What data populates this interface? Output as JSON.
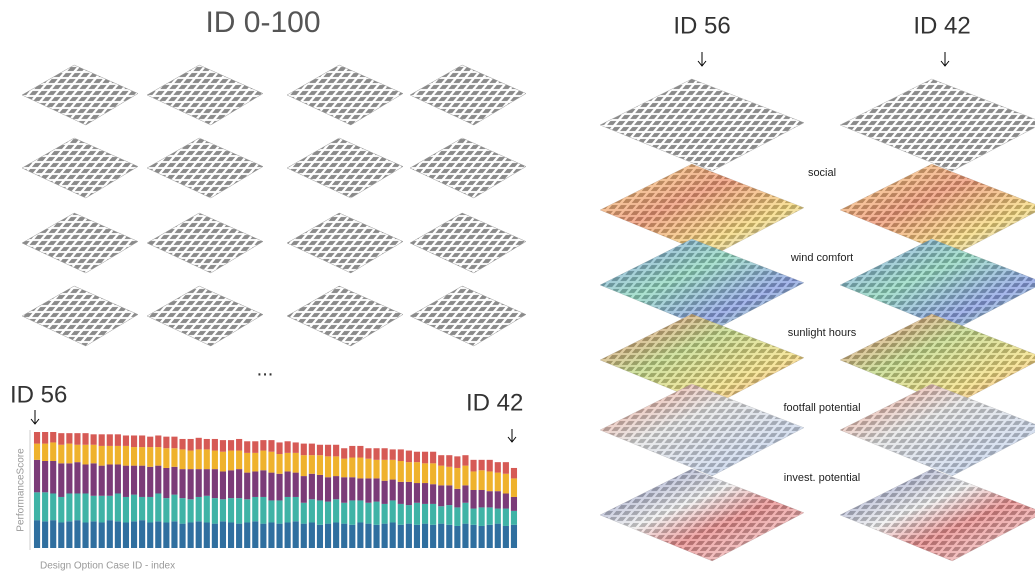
{
  "left_panel": {
    "title": "ID 0-100",
    "ellipsis": "...",
    "marker_left": "ID 56",
    "marker_right": "ID 42"
  },
  "chart_data": {
    "type": "stacked-bar",
    "y_label": "PerformanceScore",
    "x_label": "Design Option Case ID - index",
    "ylim": [
      0,
      100
    ],
    "series": [
      {
        "color": "#2f6f9f",
        "values": [
          24,
          23,
          24,
          22,
          23,
          24,
          22,
          23,
          22,
          24,
          23,
          22,
          23,
          24,
          22,
          23,
          22,
          23,
          21,
          22,
          23,
          22,
          21,
          23,
          22,
          21,
          22,
          23,
          21,
          22,
          21,
          22,
          23,
          21,
          22,
          20,
          21,
          22,
          21,
          20,
          22,
          21,
          20,
          21,
          22,
          20,
          21,
          20,
          21,
          20,
          21,
          20,
          19,
          21,
          20,
          19,
          20,
          21,
          19,
          20
        ]
      },
      {
        "color": "#3fb3a6",
        "values": [
          24,
          25,
          23,
          22,
          24,
          23,
          25,
          22,
          23,
          21,
          24,
          22,
          23,
          20,
          22,
          24,
          21,
          23,
          22,
          20,
          21,
          23,
          22,
          19,
          21,
          22,
          20,
          21,
          23,
          19,
          20,
          22,
          21,
          18,
          20,
          21,
          19,
          20,
          18,
          21,
          19,
          18,
          20,
          17,
          19,
          18,
          16,
          19,
          17,
          18,
          15,
          17,
          16,
          18,
          14,
          16,
          15,
          13,
          15,
          12
        ]
      },
      {
        "color": "#7b3b78",
        "values": [
          28,
          27,
          28,
          29,
          26,
          27,
          25,
          28,
          26,
          27,
          25,
          27,
          25,
          27,
          26,
          24,
          26,
          24,
          25,
          26,
          24,
          23,
          25,
          24,
          24,
          25,
          23,
          22,
          23,
          24,
          23,
          22,
          21,
          23,
          22,
          22,
          21,
          20,
          22,
          20,
          19,
          21,
          20,
          20,
          18,
          19,
          20,
          17,
          18,
          17,
          18,
          17,
          16,
          15,
          16,
          15,
          14,
          15,
          13,
          12
        ]
      },
      {
        "color": "#efb22c",
        "values": [
          14,
          15,
          16,
          16,
          17,
          15,
          17,
          16,
          17,
          16,
          16,
          17,
          16,
          16,
          17,
          16,
          17,
          16,
          17,
          16,
          17,
          17,
          16,
          17,
          17,
          16,
          17,
          16,
          17,
          18,
          17,
          16,
          17,
          18,
          16,
          17,
          18,
          17,
          16,
          17,
          18,
          17,
          16,
          18,
          17,
          18,
          17,
          18,
          17,
          18,
          17,
          16,
          18,
          17,
          16,
          17,
          17,
          16,
          17,
          16
        ]
      },
      {
        "color": "#d65a55",
        "values": [
          10,
          10,
          9,
          10,
          9,
          10,
          10,
          9,
          10,
          10,
          10,
          9,
          10,
          10,
          9,
          10,
          10,
          10,
          9,
          10,
          10,
          9,
          10,
          10,
          9,
          10,
          10,
          10,
          9,
          10,
          10,
          10,
          9,
          10,
          10,
          9,
          10,
          10,
          9,
          10,
          10,
          9,
          10,
          10,
          9,
          10,
          10,
          9,
          10,
          10,
          9,
          10,
          10,
          9,
          10,
          9,
          10,
          9,
          10,
          9
        ]
      }
    ]
  },
  "right_panel": {
    "left_heading": "ID 56",
    "right_heading": "ID 42",
    "layers": [
      "social",
      "wind comfort",
      "sunlight hours",
      "footfall potential",
      "invest. potential"
    ]
  }
}
